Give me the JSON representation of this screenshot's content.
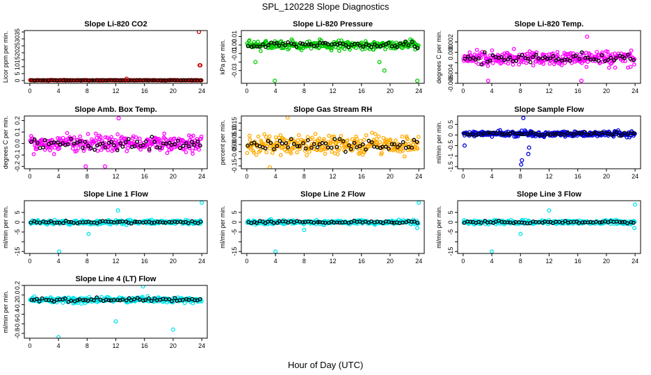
{
  "figure": {
    "title": "SPL_120228  Slope Diagnostics",
    "xlabel": "Hour of Day (UTC)"
  },
  "chart_data": [
    {
      "type": "scatter",
      "title": "Slope Li-820 CO2",
      "ylabel": "Licor ppm per min.",
      "color": "#cc0000",
      "xlim": [
        0,
        24
      ],
      "xticks": [
        "0",
        "4",
        "8",
        "12",
        "16",
        "20",
        "24"
      ],
      "ylim": [
        -2,
        36
      ],
      "yticks": [
        0,
        5,
        10,
        15,
        20,
        25,
        30,
        35
      ],
      "ytick_labels": [
        "0",
        "5",
        "10",
        "15",
        "20",
        "25",
        "30",
        "35"
      ],
      "center": 0.2,
      "spread": 0.3,
      "outliers": [
        [
          23.6,
          35
        ],
        [
          23.7,
          11
        ],
        [
          23.8,
          11
        ],
        [
          13.5,
          1.3
        ]
      ]
    },
    {
      "type": "scatter",
      "title": "Slope Li-820 Pressure",
      "ylabel": "kPa per min.",
      "color": "#00cc00",
      "xlim": [
        0,
        24
      ],
      "xticks": [
        "0",
        "4",
        "8",
        "12",
        "16",
        "20",
        "24"
      ],
      "ylim": [
        -0.045,
        0.017
      ],
      "yticks": [
        -0.03,
        -0.02,
        -0.01,
        0.0,
        0.01
      ],
      "ytick_labels": [
        "-0.03",
        "",
        "-0.01",
        "0.00",
        "0.01"
      ],
      "center": 0.0,
      "spread": 0.006,
      "outliers": [
        [
          1.2,
          -0.02
        ],
        [
          3.9,
          -0.042
        ],
        [
          19.2,
          -0.03
        ],
        [
          23.8,
          -0.042
        ],
        [
          18.5,
          -0.02
        ]
      ]
    },
    {
      "type": "scatter",
      "title": "Slope Li-820 Temp.",
      "ylabel": "degrees C per min.",
      "color": "#ff00ff",
      "xlim": [
        0,
        24
      ],
      "xticks": [
        "0",
        "4",
        "8",
        "12",
        "16",
        "20",
        "24"
      ],
      "ylim": [
        -0.006,
        0.0042
      ],
      "yticks": [
        -0.006,
        -0.004,
        -0.002,
        0.0,
        0.002
      ],
      "ytick_labels": [
        "-0.006",
        "-0.004",
        "",
        "0.000",
        "0.002"
      ],
      "center": -0.0012,
      "spread": 0.0017,
      "outliers": [
        [
          3.5,
          -0.0055
        ],
        [
          16.5,
          -0.0055
        ],
        [
          17.3,
          0.003
        ]
      ]
    },
    {
      "type": "scatter",
      "title": "Slope Amb. Box Temp.",
      "ylabel": "degrees C per min.",
      "color": "#ff00ff",
      "xlim": [
        0,
        24
      ],
      "xticks": [
        "0",
        "4",
        "8",
        "12",
        "16",
        "20",
        "24"
      ],
      "ylim": [
        -0.22,
        0.24
      ],
      "yticks": [
        -0.2,
        -0.1,
        0.0,
        0.1,
        0.2
      ],
      "ytick_labels": [
        "-0.2",
        "-0.1",
        "0.0",
        "0.1",
        "0.2"
      ],
      "center": 0.0,
      "spread": 0.09,
      "outliers": [
        [
          12.4,
          0.22
        ],
        [
          7.8,
          -0.2
        ],
        [
          10.5,
          -0.2
        ]
      ]
    },
    {
      "type": "scatter",
      "title": "Slope Gas Stream RH",
      "ylabel": "percent per min.",
      "color": "#ffaa00",
      "xlim": [
        0,
        24
      ],
      "xticks": [
        "0",
        "4",
        "8",
        "12",
        "16",
        "20",
        "24"
      ],
      "ylim": [
        -0.17,
        0.2
      ],
      "yticks": [
        -0.15,
        -0.1,
        -0.05,
        0.0,
        0.05,
        0.1,
        0.15
      ],
      "ytick_labels": [
        "-0.15",
        "",
        "-0.05",
        "0.00",
        "0.05",
        "0.10",
        "0.15"
      ],
      "center": 0.0,
      "spread": 0.075,
      "outliers": [
        [
          5.7,
          0.19
        ],
        [
          3.2,
          -0.16
        ]
      ]
    },
    {
      "type": "scatter",
      "title": "Slope Sample Flow",
      "ylabel": "ml/min per min.",
      "color": "#0000dd",
      "xlim": [
        0,
        24
      ],
      "xticks": [
        "0",
        "4",
        "8",
        "12",
        "16",
        "20",
        "24"
      ],
      "ylim": [
        -1.6,
        0.9
      ],
      "yticks": [
        -1.5,
        -1.0,
        -0.5,
        0.0,
        0.5
      ],
      "ytick_labels": [
        "-1.5",
        "-1",
        "-0.5",
        "0",
        "0.5"
      ],
      "center": 0.05,
      "spread": 0.16,
      "outliers": [
        [
          8.4,
          0.8
        ],
        [
          8.1,
          -1.4
        ],
        [
          8.2,
          -1.2
        ],
        [
          9.1,
          -0.9
        ],
        [
          9.2,
          -0.6
        ],
        [
          0.2,
          -0.5
        ]
      ]
    },
    {
      "type": "scatter",
      "title": "Slope Line 1 Flow",
      "ylabel": "ml/min per min.",
      "color": "#00e5ee",
      "xlim": [
        0,
        24
      ],
      "xticks": [
        "0",
        "4",
        "8",
        "12",
        "16",
        "20",
        "24"
      ],
      "ylim": [
        -16,
        11
      ],
      "yticks": [
        -15,
        -10,
        -5,
        0,
        5
      ],
      "ytick_labels": [
        "-15",
        "",
        "-5",
        "0",
        "5"
      ],
      "center": 0.0,
      "spread": 1.3,
      "outliers": [
        [
          24,
          10
        ],
        [
          4.1,
          -15
        ],
        [
          8.2,
          -6
        ],
        [
          12.3,
          6
        ]
      ]
    },
    {
      "type": "scatter",
      "title": "Slope Line 2 Flow",
      "ylabel": "ml/min per min.",
      "color": "#00e5ee",
      "xlim": [
        0,
        24
      ],
      "xticks": [
        "0",
        "4",
        "8",
        "12",
        "16",
        "20",
        "24"
      ],
      "ylim": [
        -16,
        11
      ],
      "yticks": [
        -15,
        -10,
        -5,
        0,
        5
      ],
      "ytick_labels": [
        "-15",
        "",
        "-5",
        "0",
        "5"
      ],
      "center": 0.0,
      "spread": 1.3,
      "outliers": [
        [
          24,
          10
        ],
        [
          4.0,
          -15
        ],
        [
          8.0,
          -4
        ],
        [
          23.8,
          -3
        ]
      ]
    },
    {
      "type": "scatter",
      "title": "Slope Line 3 Flow",
      "ylabel": "ml/min per min.",
      "color": "#00e5ee",
      "xlim": [
        0,
        24
      ],
      "xticks": [
        "0",
        "4",
        "8",
        "12",
        "16",
        "20",
        "24"
      ],
      "ylim": [
        -16,
        11
      ],
      "yticks": [
        -15,
        -10,
        -5,
        0,
        5
      ],
      "ytick_labels": [
        "-15",
        "",
        "-5",
        "0",
        "5"
      ],
      "center": 0.0,
      "spread": 1.3,
      "outliers": [
        [
          24,
          9
        ],
        [
          4.0,
          -15
        ],
        [
          8.0,
          -6
        ],
        [
          12.0,
          6
        ],
        [
          23.9,
          -3
        ]
      ]
    },
    {
      "type": "scatter",
      "title": "Slope Line 4 (LT) Flow",
      "ylabel": "ml/min per min.",
      "color": "#00e5ee",
      "xlim": [
        0,
        24
      ],
      "xticks": [
        "0",
        "4",
        "8",
        "12",
        "16",
        "20",
        "24"
      ],
      "ylim": [
        -0.9,
        0.2
      ],
      "yticks": [
        -0.8,
        -0.6,
        -0.4,
        -0.2,
        0.0,
        0.2
      ],
      "ytick_labels": [
        "-0.8",
        "-0.6",
        "-0.4",
        "-0.2",
        "0.0",
        "0.2"
      ],
      "center": -0.1,
      "spread": 0.07,
      "outliers": [
        [
          4.0,
          -0.88
        ],
        [
          12.0,
          -0.55
        ],
        [
          20.0,
          -0.72
        ],
        [
          15.8,
          0.18
        ]
      ]
    }
  ]
}
